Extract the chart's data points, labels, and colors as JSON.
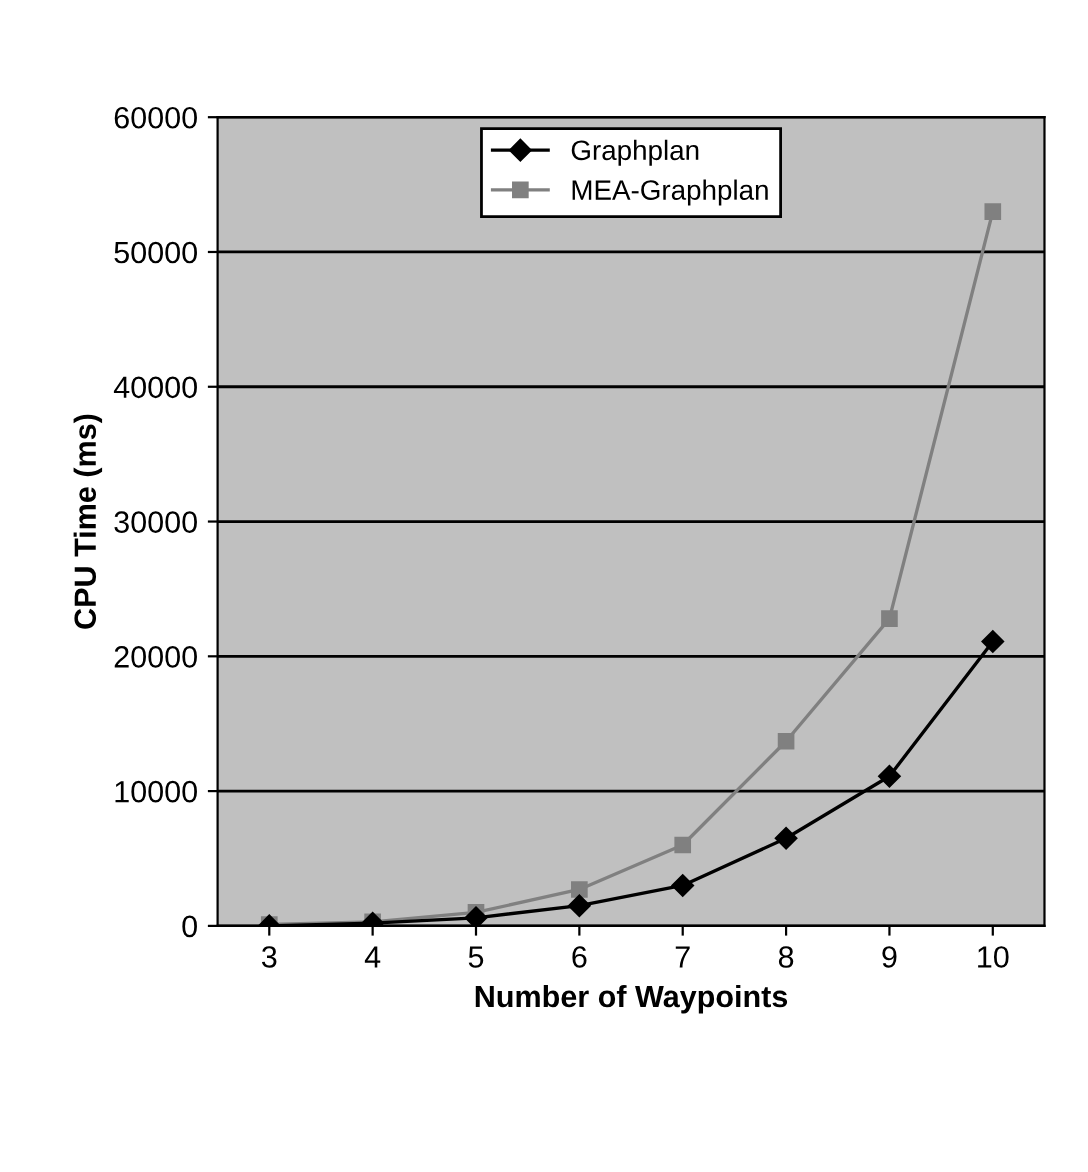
{
  "chart_data": {
    "type": "line",
    "xlabel": "Number of Waypoints",
    "ylabel": "CPU Time (ms)",
    "categories": [
      "3",
      "4",
      "5",
      "6",
      "7",
      "8",
      "9",
      "10"
    ],
    "series": [
      {
        "name": "Graphplan",
        "color": "#000000",
        "marker": "diamond",
        "values": [
          0,
          200,
          600,
          1500,
          3000,
          6500,
          11100,
          21100
        ]
      },
      {
        "name": "MEA-Graphplan",
        "color": "#808080",
        "marker": "square",
        "values": [
          100,
          300,
          1000,
          2700,
          6000,
          13700,
          22800,
          53000
        ]
      }
    ],
    "ylim": [
      0,
      60000
    ],
    "yticks": [
      0,
      10000,
      20000,
      30000,
      40000,
      50000,
      60000
    ],
    "grid": "y",
    "legend": "top",
    "line_style": "solid"
  }
}
